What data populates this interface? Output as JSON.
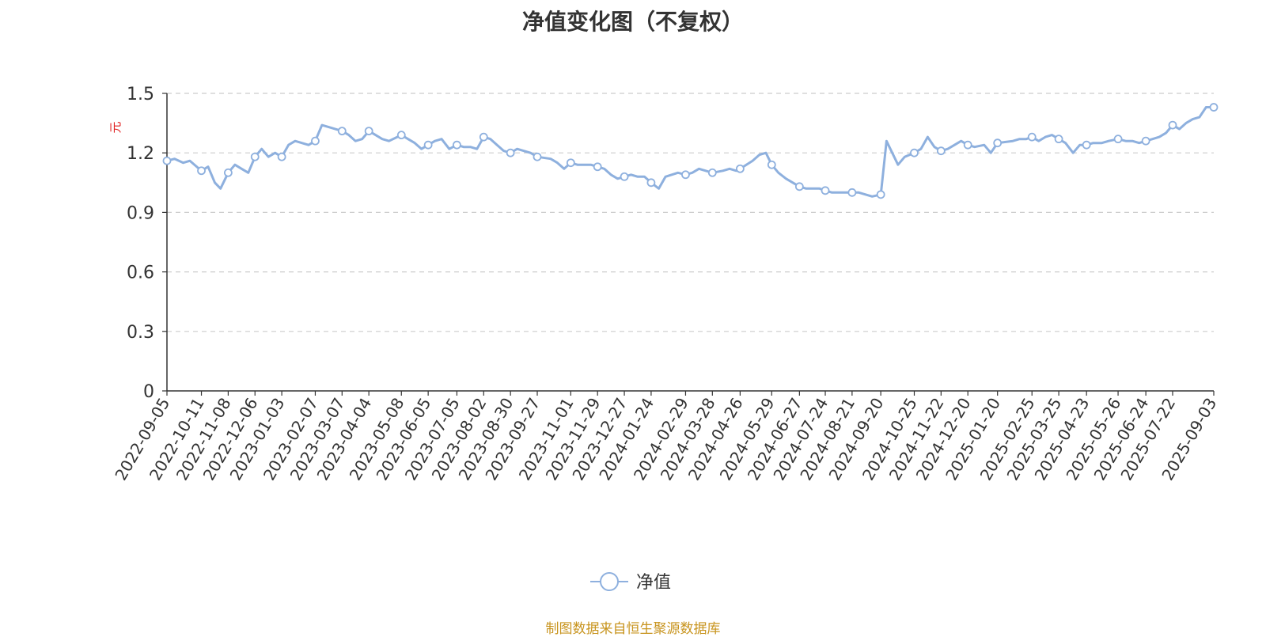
{
  "chart_data": {
    "type": "line",
    "title": "净值变化图（不复权）",
    "ylabel": "元",
    "ylim": [
      0,
      1.5
    ],
    "yticks": [
      "0",
      "0.3",
      "0.6",
      "0.9",
      "1.2",
      "1.5"
    ],
    "grid": "horizontal-dashed",
    "legend_position": "bottom-center",
    "colors": {
      "line": "#8eb0de",
      "ylabel": "#e02020",
      "source": "#c8941e",
      "axis": "#333333",
      "grid": "#cccccc"
    },
    "x_tick_labels": [
      "2022-09-05",
      "2022-10-11",
      "2022-11-08",
      "2022-12-06",
      "2023-01-03",
      "2023-02-07",
      "2023-03-07",
      "2023-04-04",
      "2023-05-08",
      "2023-06-05",
      "2023-07-05",
      "2023-08-02",
      "2023-08-30",
      "2023-09-27",
      "2023-11-01",
      "2023-11-29",
      "2023-12-27",
      "2024-01-24",
      "2024-02-29",
      "2024-03-28",
      "2024-04-26",
      "2024-05-29",
      "2024-06-27",
      "2024-07-24",
      "2024-08-21",
      "2024-09-20",
      "2024-10-25",
      "2024-11-22",
      "2024-12-20",
      "2025-01-20",
      "2025-02-25",
      "2025-03-25",
      "2025-04-23",
      "2025-05-26",
      "2025-06-24",
      "2025-07-22",
      "2025-09-03"
    ],
    "series": [
      {
        "name": "净值",
        "x": [
          "2022-09-05",
          "2022-09-13",
          "2022-09-22",
          "2022-09-29",
          "2022-10-11",
          "2022-10-18",
          "2022-10-25",
          "2022-10-31",
          "2022-11-08",
          "2022-11-15",
          "2022-11-22",
          "2022-11-29",
          "2022-12-06",
          "2022-12-13",
          "2022-12-20",
          "2022-12-27",
          "2023-01-03",
          "2023-01-10",
          "2023-01-17",
          "2023-01-31",
          "2023-02-07",
          "2023-02-14",
          "2023-02-21",
          "2023-02-28",
          "2023-03-07",
          "2023-03-14",
          "2023-03-21",
          "2023-03-28",
          "2023-04-04",
          "2023-04-11",
          "2023-04-18",
          "2023-04-25",
          "2023-05-08",
          "2023-05-15",
          "2023-05-22",
          "2023-05-29",
          "2023-06-05",
          "2023-06-12",
          "2023-06-19",
          "2023-06-27",
          "2023-07-05",
          "2023-07-12",
          "2023-07-19",
          "2023-07-26",
          "2023-08-02",
          "2023-08-09",
          "2023-08-16",
          "2023-08-23",
          "2023-08-30",
          "2023-09-06",
          "2023-09-13",
          "2023-09-20",
          "2023-09-27",
          "2023-10-11",
          "2023-10-18",
          "2023-10-25",
          "2023-11-01",
          "2023-11-08",
          "2023-11-15",
          "2023-11-22",
          "2023-11-29",
          "2023-12-06",
          "2023-12-13",
          "2023-12-20",
          "2023-12-27",
          "2024-01-03",
          "2024-01-10",
          "2024-01-17",
          "2024-01-24",
          "2024-02-01",
          "2024-02-08",
          "2024-02-21",
          "2024-02-29",
          "2024-03-07",
          "2024-03-14",
          "2024-03-21",
          "2024-03-28",
          "2024-04-08",
          "2024-04-15",
          "2024-04-22",
          "2024-04-26",
          "2024-05-09",
          "2024-05-16",
          "2024-05-23",
          "2024-05-29",
          "2024-06-05",
          "2024-06-13",
          "2024-06-20",
          "2024-06-27",
          "2024-07-04",
          "2024-07-11",
          "2024-07-18",
          "2024-07-24",
          "2024-07-31",
          "2024-08-07",
          "2024-08-14",
          "2024-08-21",
          "2024-08-28",
          "2024-09-04",
          "2024-09-11",
          "2024-09-20",
          "2024-09-26",
          "2024-10-08",
          "2024-10-15",
          "2024-10-25",
          "2024-11-01",
          "2024-11-08",
          "2024-11-15",
          "2024-11-22",
          "2024-11-29",
          "2024-12-06",
          "2024-12-13",
          "2024-12-20",
          "2024-12-27",
          "2025-01-06",
          "2025-01-13",
          "2025-01-20",
          "2025-02-05",
          "2025-02-12",
          "2025-02-19",
          "2025-02-25",
          "2025-03-04",
          "2025-03-11",
          "2025-03-18",
          "2025-03-25",
          "2025-04-01",
          "2025-04-09",
          "2025-04-16",
          "2025-04-23",
          "2025-04-30",
          "2025-05-09",
          "2025-05-16",
          "2025-05-26",
          "2025-06-03",
          "2025-06-10",
          "2025-06-17",
          "2025-06-24",
          "2025-07-01",
          "2025-07-08",
          "2025-07-15",
          "2025-07-22",
          "2025-07-29",
          "2025-08-05",
          "2025-08-12",
          "2025-08-19",
          "2025-08-26",
          "2025-09-03"
        ],
        "values": [
          1.16,
          1.17,
          1.15,
          1.16,
          1.11,
          1.13,
          1.05,
          1.02,
          1.1,
          1.14,
          1.12,
          1.1,
          1.18,
          1.22,
          1.18,
          1.2,
          1.18,
          1.24,
          1.26,
          1.24,
          1.26,
          1.34,
          1.33,
          1.32,
          1.31,
          1.29,
          1.26,
          1.27,
          1.31,
          1.29,
          1.27,
          1.26,
          1.29,
          1.27,
          1.25,
          1.22,
          1.24,
          1.26,
          1.27,
          1.22,
          1.24,
          1.23,
          1.23,
          1.22,
          1.28,
          1.27,
          1.24,
          1.21,
          1.2,
          1.22,
          1.21,
          1.2,
          1.18,
          1.17,
          1.15,
          1.12,
          1.15,
          1.14,
          1.14,
          1.14,
          1.13,
          1.12,
          1.09,
          1.07,
          1.08,
          1.09,
          1.08,
          1.08,
          1.05,
          1.02,
          1.08,
          1.1,
          1.09,
          1.1,
          1.12,
          1.11,
          1.1,
          1.11,
          1.12,
          1.11,
          1.12,
          1.16,
          1.19,
          1.2,
          1.14,
          1.1,
          1.07,
          1.05,
          1.03,
          1.02,
          1.02,
          1.02,
          1.01,
          1.0,
          1.0,
          1.0,
          1.0,
          1.0,
          0.99,
          0.98,
          0.99,
          1.26,
          1.14,
          1.18,
          1.2,
          1.22,
          1.28,
          1.23,
          1.21,
          1.22,
          1.24,
          1.26,
          1.24,
          1.23,
          1.24,
          1.2,
          1.25,
          1.26,
          1.27,
          1.27,
          1.28,
          1.26,
          1.28,
          1.29,
          1.27,
          1.25,
          1.2,
          1.24,
          1.24,
          1.25,
          1.25,
          1.26,
          1.27,
          1.26,
          1.26,
          1.25,
          1.26,
          1.27,
          1.28,
          1.3,
          1.34,
          1.32,
          1.35,
          1.37,
          1.38,
          1.43,
          1.43
        ]
      }
    ],
    "legend": [
      {
        "label": "净值"
      }
    ]
  },
  "footer": {
    "source": "制图数据来自恒生聚源数据库"
  }
}
